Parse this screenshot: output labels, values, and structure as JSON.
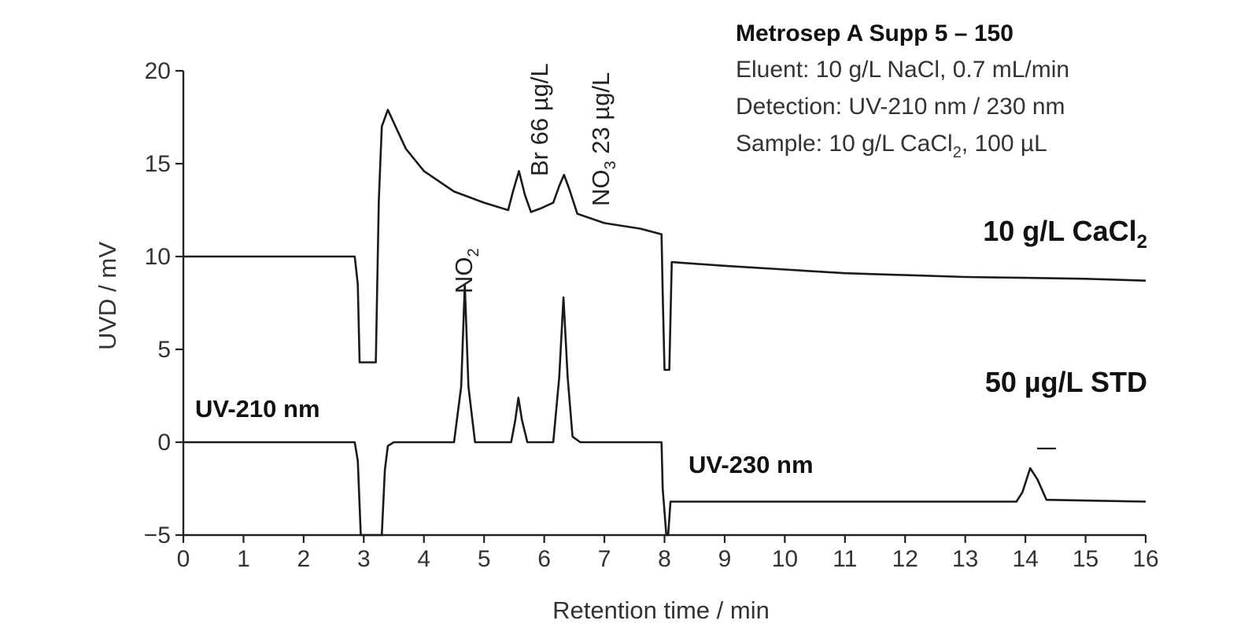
{
  "chart_data": {
    "type": "line",
    "xlabel": "Retention time / min",
    "ylabel": "UVD / mV",
    "xlim": [
      0,
      16
    ],
    "ylim": [
      -5,
      20
    ],
    "xticks": [
      "0",
      "1",
      "2",
      "3",
      "4",
      "5",
      "6",
      "7",
      "8",
      "9",
      "10",
      "11",
      "12",
      "13",
      "14",
      "15",
      "16"
    ],
    "yticks": [
      "20",
      "15",
      "10",
      "5",
      "0",
      "−5"
    ],
    "info": {
      "title": "Metrosep A Supp 5 – 150",
      "eluent": "Eluent:  10 g/L NaCl, 0.7 mL/min",
      "detection": "Detection:  UV-210 nm / 230 nm",
      "sample_prefix": "Sample:  10 g/L CaCl",
      "sample_sub": "2",
      "sample_suffix": ", 100 µL"
    },
    "series": [
      {
        "name": "10 g/L CaCl2",
        "label_main": "10 g/L CaCl",
        "label_sub": "2",
        "x": [
          0,
          2.85,
          2.9,
          2.93,
          3.2,
          3.25,
          3.3,
          3.4,
          3.5,
          3.7,
          4.0,
          4.5,
          5.0,
          5.4,
          5.48,
          5.58,
          5.68,
          5.78,
          5.95,
          6.15,
          6.25,
          6.33,
          6.42,
          6.55,
          7.0,
          7.6,
          7.95,
          7.97,
          8.0,
          8.08,
          8.12,
          9,
          10,
          11,
          12,
          13,
          14,
          15,
          16
        ],
        "y": [
          10,
          10,
          8.5,
          4.3,
          4.3,
          13,
          17,
          17.9,
          17.2,
          15.8,
          14.6,
          13.5,
          12.9,
          12.5,
          13.5,
          14.6,
          13.3,
          12.4,
          12.6,
          12.9,
          13.8,
          14.4,
          13.6,
          12.3,
          11.8,
          11.5,
          11.2,
          8,
          3.9,
          3.9,
          9.7,
          9.5,
          9.3,
          9.1,
          9.0,
          8.9,
          8.85,
          8.8,
          8.7
        ]
      },
      {
        "name": "50 µg/L STD",
        "label_main": "50 µg/L STD",
        "x": [
          0,
          2.85,
          2.9,
          2.95,
          3.3,
          3.35,
          3.4,
          3.5,
          4.5,
          4.62,
          4.68,
          4.74,
          4.85,
          5.45,
          5.52,
          5.57,
          5.63,
          5.72,
          6.15,
          6.25,
          6.32,
          6.39,
          6.47,
          6.6,
          7.95,
          7.97,
          8.03,
          8.06,
          8.1,
          13.85,
          13.95,
          14.08,
          14.2,
          14.35,
          16
        ],
        "y": [
          0,
          0,
          -1,
          -5,
          -5,
          -1.5,
          -0.2,
          0,
          0,
          3,
          8.5,
          3,
          0,
          0,
          1.2,
          2.4,
          1.2,
          0,
          0,
          3.5,
          7.8,
          3.5,
          0.3,
          0,
          0,
          -2.5,
          -5,
          -5,
          -3.2,
          -3.2,
          -2.7,
          -1.4,
          -2.0,
          -3.1,
          -3.2
        ]
      }
    ],
    "annotations": {
      "uv210": "UV-210 nm",
      "uv230": "UV-230 nm",
      "no2_main": "NO",
      "no2_sub": "2",
      "br": "Br 66 µg/L",
      "no3_main": "NO",
      "no3_sub": "3",
      "no3_rest": " 23 µg/L"
    },
    "grid": false,
    "legend": "none"
  }
}
